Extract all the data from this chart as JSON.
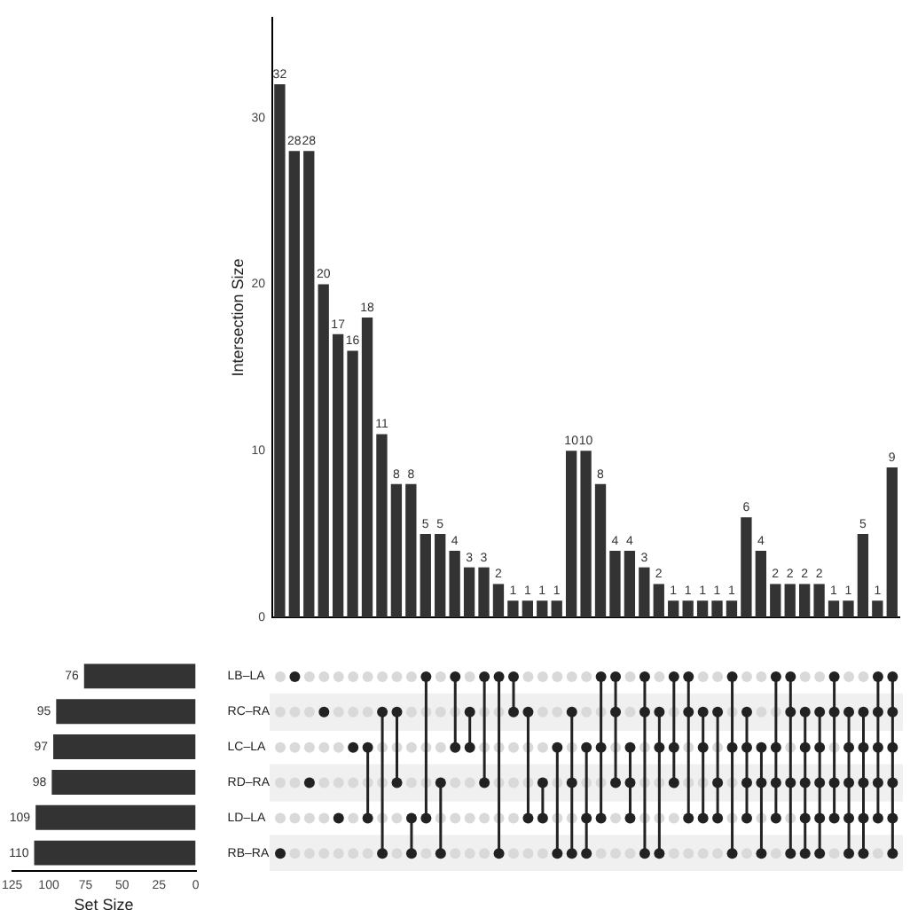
{
  "chart_data": [
    {
      "type": "bar",
      "ylabel": "Intersection Size",
      "categories": [
        null,
        null,
        null,
        null,
        null,
        null,
        null,
        null,
        null,
        null,
        null,
        null,
        null,
        null,
        null,
        null,
        null,
        null,
        null,
        null,
        null,
        null,
        null,
        null,
        null,
        null,
        null,
        null,
        null,
        null,
        null,
        null,
        null,
        null,
        null,
        null,
        null,
        null,
        null,
        null,
        null,
        null,
        null
      ],
      "values": [
        32,
        28,
        28,
        20,
        17,
        16,
        18,
        11,
        8,
        8,
        5,
        5,
        4,
        3,
        3,
        2,
        1,
        1,
        1,
        1,
        10,
        10,
        8,
        4,
        4,
        3,
        2,
        1,
        1,
        1,
        1,
        1,
        6,
        4,
        2,
        2,
        2,
        2,
        1,
        1,
        5,
        1,
        9
      ],
      "color": "#333333",
      "ylim": [
        0,
        36
      ],
      "yticks": [
        0,
        10,
        20,
        30
      ],
      "grid": false,
      "data_labels": true
    },
    {
      "type": "bar",
      "orientation": "horizontal",
      "xlabel": "Set Size",
      "categories": [
        "LB–LA",
        "RC–RA",
        "LC–LA",
        "RD–RA",
        "LD–LA",
        "RB–RA"
      ],
      "values": [
        76,
        95,
        97,
        98,
        109,
        110
      ],
      "color": "#333333",
      "xlim": [
        125,
        0
      ],
      "xticks": [
        125,
        100,
        75,
        50,
        25,
        0
      ],
      "grid": false,
      "data_labels": true
    }
  ]
}
